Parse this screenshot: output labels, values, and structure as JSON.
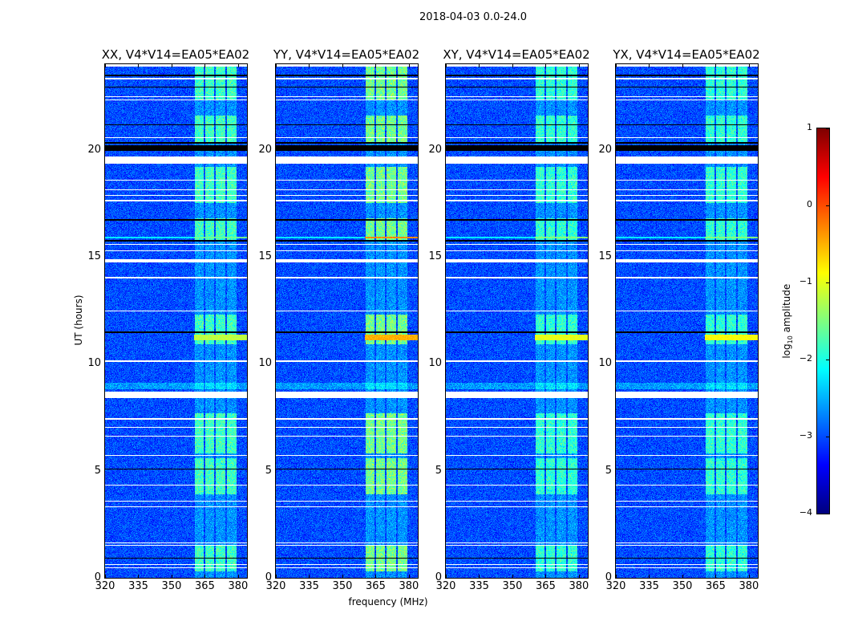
{
  "figure": {
    "suptitle": "2018-04-03 0.0-24.0",
    "xlabel": "frequency (MHz)",
    "ylabel": "UT (hours)"
  },
  "colorbar": {
    "label_prefix": "log",
    "label_sub": "10",
    "label_suffix": " amplitude",
    "ticks": [
      "1",
      "0",
      "−1",
      "−2",
      "−3",
      "−4"
    ],
    "tick_values": [
      1,
      0,
      -1,
      -2,
      -3,
      -4
    ],
    "range": [
      -4,
      1
    ],
    "colormap": "jet"
  },
  "chart_data": {
    "type": "heatmap",
    "title": "2018-04-03 0.0-24.0",
    "xlabel": "frequency (MHz)",
    "ylabel": "UT (hours)",
    "xlim": [
      320,
      384
    ],
    "ylim": [
      0,
      24
    ],
    "xticks": [
      "320",
      "335",
      "350",
      "365",
      "380"
    ],
    "xtick_values": [
      320,
      335,
      350,
      365,
      380
    ],
    "yticks": [
      "0",
      "5",
      "10",
      "15",
      "20"
    ],
    "ytick_values": [
      0,
      5,
      10,
      15,
      20
    ],
    "zlim": [
      -4,
      1
    ],
    "zlabel": "log10 amplitude",
    "background_level": -3.0,
    "panels": [
      {
        "title": "XX, V4*V14=EA05*EA02",
        "rfi_peak": -1.6,
        "line_1125": -1.2,
        "line_159": -1.6
      },
      {
        "title": "YY, V4*V14=EA05*EA02",
        "rfi_peak": -1.3,
        "line_1125": -0.5,
        "line_159": -0.3
      },
      {
        "title": "XY, V4*V14=EA05*EA02",
        "rfi_peak": -1.7,
        "line_1125": -1.0,
        "line_159": -1.5
      },
      {
        "title": "YX, V4*V14=EA05*EA02",
        "rfi_peak": -1.7,
        "line_1125": -0.9,
        "line_159": -1.5
      }
    ],
    "rfi_subbands_mhz": [
      [
        360.5,
        364.5
      ],
      [
        365.2,
        369.3
      ],
      [
        370.0,
        374.2
      ],
      [
        375.0,
        379.3
      ]
    ],
    "rfi_active_hours": [
      [
        0.3,
        1.5
      ],
      [
        3.9,
        5.6
      ],
      [
        5.8,
        7.7
      ],
      [
        10.9,
        12.3
      ],
      [
        15.8,
        16.8
      ],
      [
        17.5,
        19.2
      ],
      [
        20.3,
        21.6
      ],
      [
        22.3,
        24.0
      ]
    ],
    "flagged_hours": [
      [
        0.45,
        0.5
      ],
      [
        0.6,
        0.65
      ],
      [
        1.5,
        1.55
      ],
      [
        1.6,
        1.65
      ],
      [
        3.3,
        3.35
      ],
      [
        3.55,
        3.6
      ],
      [
        4.3,
        4.35
      ],
      [
        5.7,
        5.75
      ],
      [
        6.6,
        6.65
      ],
      [
        7.0,
        7.05
      ],
      [
        7.4,
        7.45
      ],
      [
        8.4,
        8.7
      ],
      [
        10.1,
        10.15
      ],
      [
        12.45,
        12.5
      ],
      [
        14.0,
        14.05
      ],
      [
        14.75,
        14.9
      ],
      [
        15.25,
        15.3
      ],
      [
        15.55,
        15.6
      ],
      [
        17.6,
        17.65
      ],
      [
        17.85,
        17.9
      ],
      [
        18.1,
        18.15
      ],
      [
        18.55,
        18.6
      ],
      [
        19.35,
        19.7
      ],
      [
        20.55,
        20.6
      ],
      [
        22.3,
        22.35
      ],
      [
        22.45,
        22.5
      ],
      [
        23.3,
        23.35
      ],
      [
        23.9,
        24.0
      ]
    ],
    "dropout_hours": [
      [
        0.9,
        0.95
      ],
      [
        5.05,
        5.1
      ],
      [
        11.45,
        11.5
      ],
      [
        15.7,
        15.78
      ],
      [
        16.7,
        16.75
      ],
      [
        19.95,
        20.2
      ],
      [
        20.3,
        20.35
      ],
      [
        21.15,
        21.18
      ],
      [
        22.9,
        22.95
      ],
      [
        23.45,
        23.5
      ]
    ]
  }
}
